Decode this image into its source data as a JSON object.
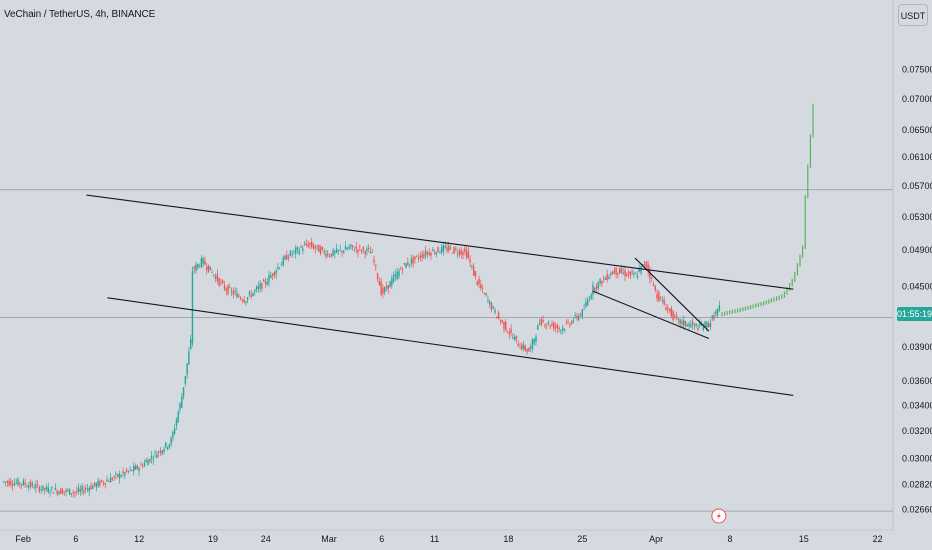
{
  "header": {
    "symbol_title": "VeChain / TetherUS, 4h, BINANCE",
    "currency_label": "USDT"
  },
  "price_badge": {
    "text": "01:55:19"
  },
  "colors": {
    "up": "#26a69a",
    "down": "#ef5350",
    "projection": "#4caf50",
    "trendline": "#131722",
    "background": "#d5d9e0",
    "hline": "#9598a1"
  },
  "chart_data": {
    "type": "candlestick",
    "symbol": "VET/USDT",
    "exchange": "BINANCE",
    "interval": "4h",
    "x_tick_labels": [
      "Feb",
      "6",
      "12",
      "19",
      "24",
      "Mar",
      "6",
      "11",
      "18",
      "25",
      "Apr",
      "8",
      "15",
      "22"
    ],
    "y_tick_labels": [
      "0.07500",
      "0.07000",
      "0.06500",
      "0.06100",
      "0.05700",
      "0.05300",
      "0.04900",
      "0.04500",
      "0.03900",
      "0.03600",
      "0.03400",
      "0.03200",
      "0.03000",
      "0.02820",
      "0.02660"
    ],
    "y_ticks": [
      0.075,
      0.07,
      0.065,
      0.061,
      0.057,
      0.053,
      0.049,
      0.045,
      0.039,
      0.036,
      0.034,
      0.032,
      0.03,
      0.0282,
      0.0266
    ],
    "ylim": [
      0.0258,
      0.078
    ],
    "y_scale": "log",
    "grid": false,
    "horizontal_levels": [
      0.0565,
      0.0418,
      0.0265
    ],
    "trendlines": [
      {
        "name": "upper channel",
        "from": [
          "2024-02-07",
          0.0558
        ],
        "to": [
          "2024-04-14",
          0.0447
        ]
      },
      {
        "name": "lower channel",
        "from": [
          "2024-02-09",
          0.0438
        ],
        "to": [
          "2024-04-14",
          0.0348
        ]
      },
      {
        "name": "wedge upper",
        "from": [
          "2024-03-30",
          0.0481
        ],
        "to": [
          "2024-04-06",
          0.0405
        ]
      },
      {
        "name": "wedge lower",
        "from": [
          "2024-03-26",
          0.0445
        ],
        "to": [
          "2024-04-06",
          0.0398
        ]
      }
    ],
    "price_path": [
      [
        "2024-01-30",
        0.0284
      ],
      [
        "2024-02-01",
        0.0283
      ],
      [
        "2024-02-03",
        0.0279
      ],
      [
        "2024-02-06",
        0.0277
      ],
      [
        "2024-02-09",
        0.0285
      ],
      [
        "2024-02-12",
        0.0294
      ],
      [
        "2024-02-15",
        0.0312
      ],
      [
        "2024-02-16",
        0.0345
      ],
      [
        "2024-02-17",
        0.0402
      ],
      [
        "2024-02-17",
        0.0467
      ],
      [
        "2024-02-18",
        0.0478
      ],
      [
        "2024-02-20",
        0.0449
      ],
      [
        "2024-02-22",
        0.0436
      ],
      [
        "2024-02-24",
        0.0455
      ],
      [
        "2024-02-26",
        0.0483
      ],
      [
        "2024-02-28",
        0.0497
      ],
      [
        "2024-03-01",
        0.0485
      ],
      [
        "2024-03-03",
        0.0493
      ],
      [
        "2024-03-05",
        0.0488
      ],
      [
        "2024-03-06",
        0.0442
      ],
      [
        "2024-03-08",
        0.0472
      ],
      [
        "2024-03-10",
        0.0486
      ],
      [
        "2024-03-12",
        0.0492
      ],
      [
        "2024-03-14",
        0.0487
      ],
      [
        "2024-03-15",
        0.0455
      ],
      [
        "2024-03-17",
        0.0418
      ],
      [
        "2024-03-19",
        0.0392
      ],
      [
        "2024-03-20",
        0.0386
      ],
      [
        "2024-03-21",
        0.0415
      ],
      [
        "2024-03-23",
        0.0407
      ],
      [
        "2024-03-25",
        0.0423
      ],
      [
        "2024-03-26",
        0.0448
      ],
      [
        "2024-03-28",
        0.0467
      ],
      [
        "2024-03-30",
        0.0461
      ],
      [
        "2024-03-31",
        0.0476
      ],
      [
        "2024-04-01",
        0.0442
      ],
      [
        "2024-04-03",
        0.0414
      ],
      [
        "2024-04-05",
        0.0409
      ],
      [
        "2024-04-06",
        0.0412
      ],
      [
        "2024-04-07",
        0.0428
      ]
    ],
    "projection_path": [
      [
        "2024-04-07",
        0.0421
      ],
      [
        "2024-04-09",
        0.0426
      ],
      [
        "2024-04-11",
        0.0432
      ],
      [
        "2024-04-13",
        0.044
      ],
      [
        "2024-04-14",
        0.0458
      ],
      [
        "2024-04-15",
        0.0498
      ],
      [
        "2024-04-15",
        0.0535
      ],
      [
        "2024-04-16",
        0.0715
      ],
      [
        "2024-04-16",
        0.0635
      ]
    ],
    "alert_marker": {
      "date": "2024-04-06",
      "icon": "lightning-icon"
    }
  }
}
